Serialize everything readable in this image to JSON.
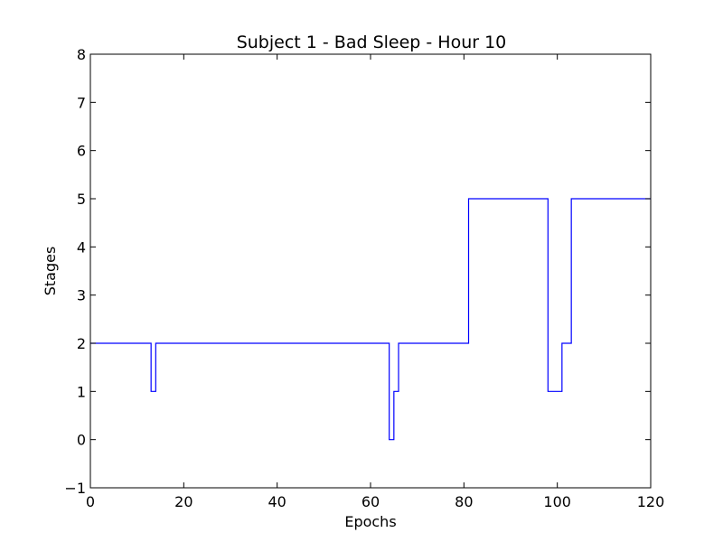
{
  "chart_data": {
    "type": "line",
    "step": true,
    "title": "Subject 1 - Bad Sleep - Hour 10",
    "xlabel": "Epochs",
    "ylabel": "Stages",
    "xlim": [
      0,
      120
    ],
    "ylim": [
      -1,
      8
    ],
    "xticks": [
      0,
      20,
      40,
      60,
      80,
      100,
      120
    ],
    "yticks": [
      -1,
      0,
      1,
      2,
      3,
      4,
      5,
      6,
      7,
      8
    ],
    "xtick_labels": [
      "0",
      "20",
      "40",
      "60",
      "80",
      "100",
      "120"
    ],
    "ytick_labels": [
      "−1",
      "0",
      "1",
      "2",
      "3",
      "4",
      "5",
      "6",
      "7",
      "8"
    ],
    "grid": false,
    "series": [
      {
        "color": "#0000ff",
        "x": [
          0,
          13,
          14,
          64,
          65,
          66,
          81,
          98,
          101,
          103,
          120
        ],
        "y": [
          2,
          1,
          2,
          0,
          1,
          2,
          5,
          1,
          2,
          5,
          5
        ]
      }
    ]
  }
}
